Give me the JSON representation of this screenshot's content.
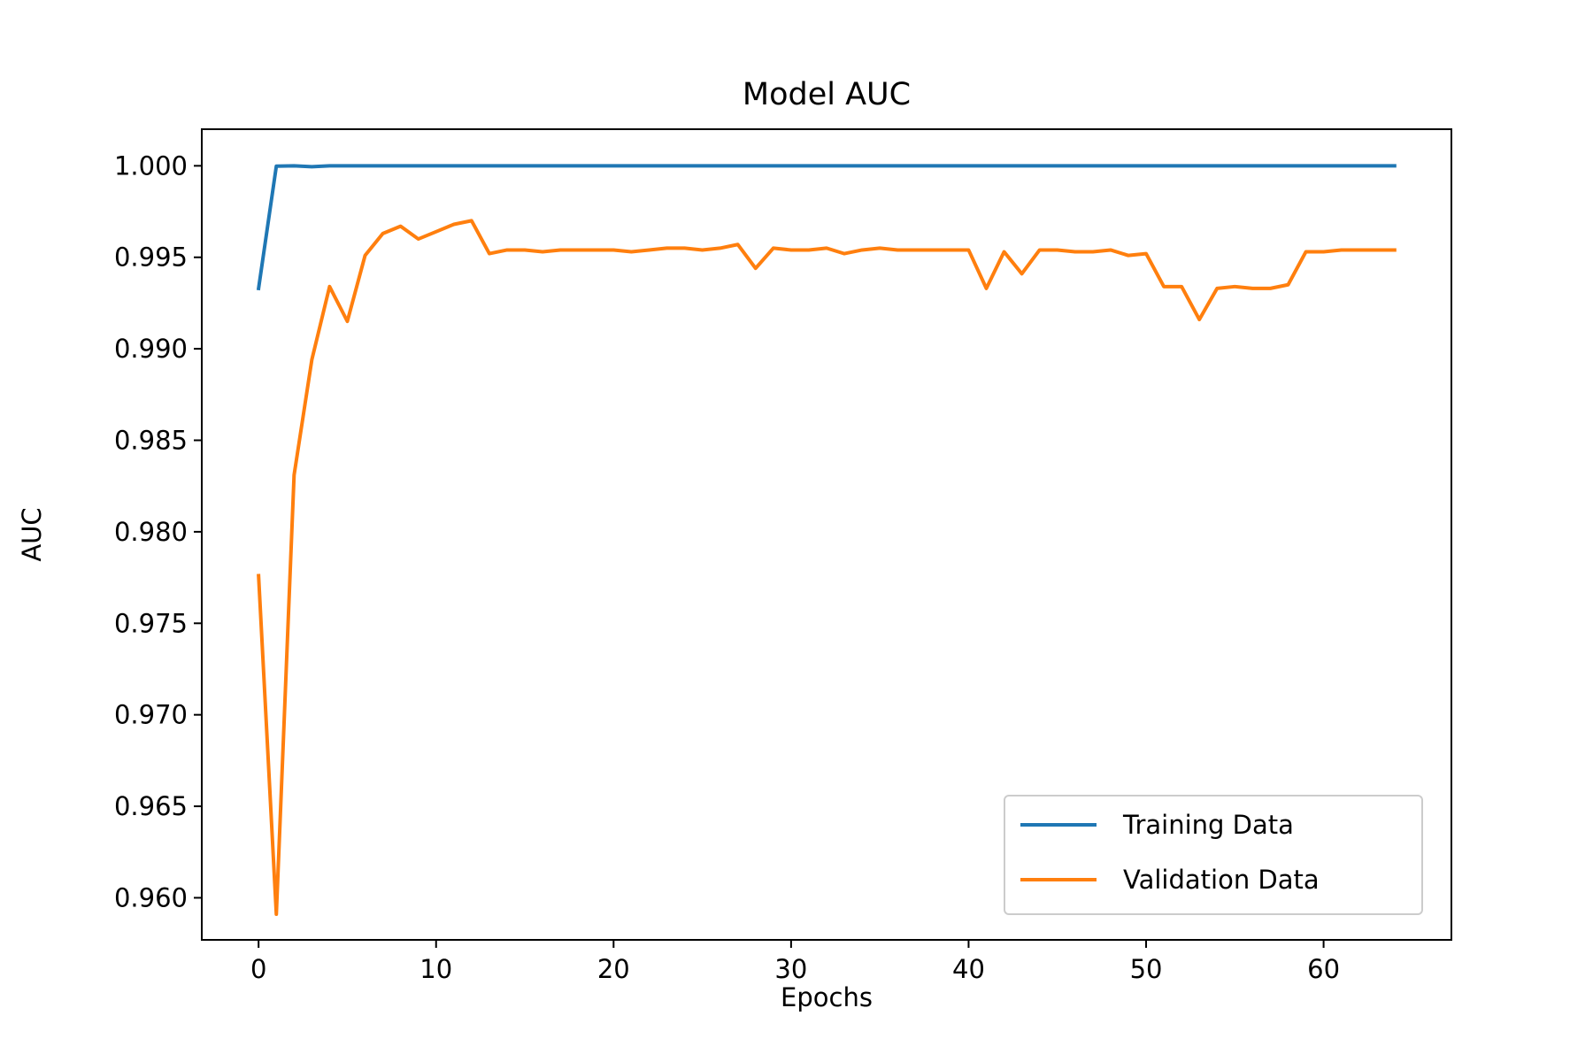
{
  "chart_data": {
    "type": "line",
    "title": "Model AUC",
    "xlabel": "Epochs",
    "ylabel": "AUC",
    "xlim": [
      -3.2,
      67.2
    ],
    "ylim": [
      0.9577,
      1.002
    ],
    "x_ticks": [
      0,
      10,
      20,
      30,
      40,
      50,
      60
    ],
    "y_ticks": [
      0.96,
      0.965,
      0.97,
      0.975,
      0.98,
      0.985,
      0.99,
      0.995,
      1.0
    ],
    "x_tick_labels": [
      "0",
      "10",
      "20",
      "30",
      "40",
      "50",
      "60"
    ],
    "y_tick_labels": [
      "0.960",
      "0.965",
      "0.970",
      "0.975",
      "0.980",
      "0.985",
      "0.990",
      "0.995",
      "1.000"
    ],
    "grid": false,
    "legend_position": "lower-right",
    "x": [
      0,
      1,
      2,
      3,
      4,
      5,
      6,
      7,
      8,
      9,
      10,
      11,
      12,
      13,
      14,
      15,
      16,
      17,
      18,
      19,
      20,
      21,
      22,
      23,
      24,
      25,
      26,
      27,
      28,
      29,
      30,
      31,
      32,
      33,
      34,
      35,
      36,
      37,
      38,
      39,
      40,
      41,
      42,
      43,
      44,
      45,
      46,
      47,
      48,
      49,
      50,
      51,
      52,
      53,
      54,
      55,
      56,
      57,
      58,
      59,
      60,
      61,
      62,
      63,
      64
    ],
    "series": [
      {
        "name": "Training Data",
        "color": "#1f77b4",
        "values": [
          0.9933,
          0.99998,
          1.0,
          0.99995,
          1.0,
          1.0,
          1.0,
          1.0,
          1.0,
          1.0,
          1.0,
          1.0,
          1.0,
          1.0,
          1.0,
          1.0,
          1.0,
          1.0,
          1.0,
          1.0,
          1.0,
          1.0,
          1.0,
          1.0,
          1.0,
          1.0,
          1.0,
          1.0,
          1.0,
          1.0,
          1.0,
          1.0,
          1.0,
          1.0,
          1.0,
          1.0,
          1.0,
          1.0,
          1.0,
          1.0,
          1.0,
          1.0,
          1.0,
          1.0,
          1.0,
          1.0,
          1.0,
          1.0,
          1.0,
          1.0,
          1.0,
          1.0,
          1.0,
          1.0,
          1.0,
          1.0,
          1.0,
          1.0,
          1.0,
          1.0,
          1.0,
          1.0,
          1.0,
          1.0,
          1.0
        ]
      },
      {
        "name": "Validation Data",
        "color": "#ff7f0e",
        "values": [
          0.9776,
          0.9591,
          0.9831,
          0.9894,
          0.9934,
          0.9915,
          0.9951,
          0.9963,
          0.9967,
          0.996,
          0.9964,
          0.9968,
          0.997,
          0.9952,
          0.9954,
          0.9954,
          0.9953,
          0.9954,
          0.9954,
          0.9954,
          0.9954,
          0.9953,
          0.9954,
          0.9955,
          0.9955,
          0.9954,
          0.9955,
          0.9957,
          0.9944,
          0.9955,
          0.9954,
          0.9954,
          0.9955,
          0.9952,
          0.9954,
          0.9955,
          0.9954,
          0.9954,
          0.9954,
          0.9954,
          0.9954,
          0.9933,
          0.9953,
          0.9941,
          0.9954,
          0.9954,
          0.9953,
          0.9953,
          0.9954,
          0.9951,
          0.9952,
          0.9934,
          0.9934,
          0.9916,
          0.9933,
          0.9934,
          0.9933,
          0.9933,
          0.9935,
          0.9953,
          0.9953,
          0.9954,
          0.9954,
          0.9954,
          0.9954
        ]
      }
    ]
  }
}
